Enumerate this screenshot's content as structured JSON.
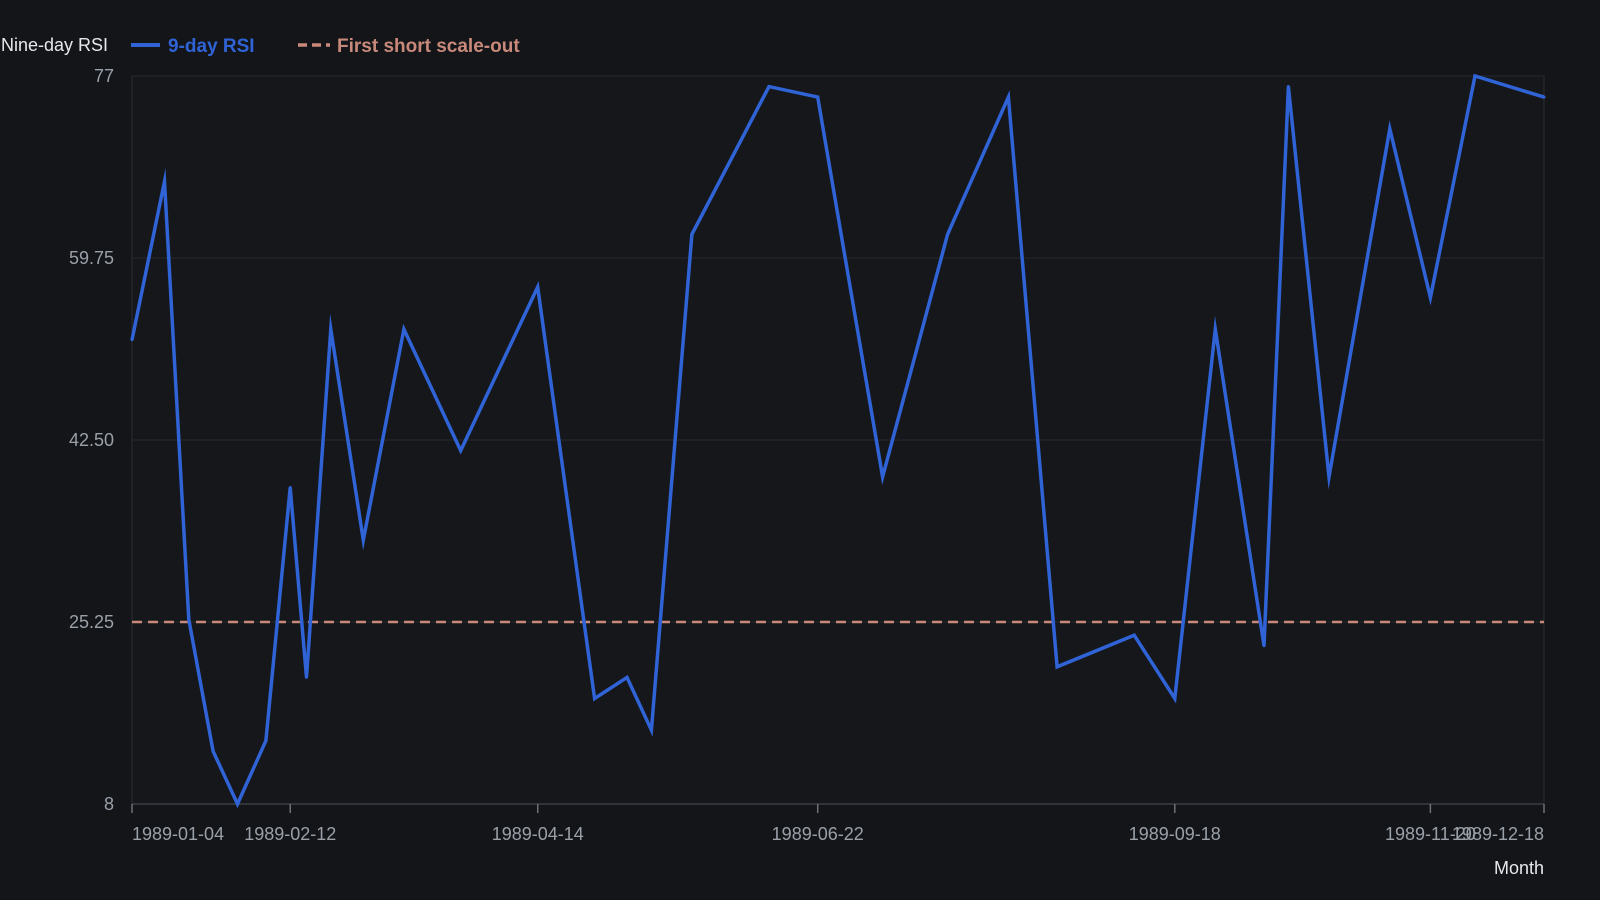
{
  "chart_data": {
    "type": "line",
    "ylabel": "Nine-day RSI",
    "xlabel": "Month",
    "ylim": [
      8,
      77
    ],
    "y_ticks": [
      "77",
      "59.75",
      "42.50",
      "25.25",
      "8"
    ],
    "y_tick_values": [
      77,
      59.75,
      42.5,
      25.25,
      8
    ],
    "x_ticks": [
      "1989-01-04",
      "1989-02-12",
      "1989-04-14",
      "1989-06-22",
      "1989-09-18",
      "1989-11-20",
      "1989-12-18"
    ],
    "xlim": [
      "1989-01-04",
      "1989-12-18"
    ],
    "grid": true,
    "legend_position": "top-left",
    "series": [
      {
        "name": "9-day RSI",
        "color": "#2f63d6",
        "points": [
          [
            "1989-01-04",
            52
          ],
          [
            "1989-01-12",
            67
          ],
          [
            "1989-01-18",
            25.5
          ],
          [
            "1989-01-24",
            13
          ],
          [
            "1989-01-30",
            8
          ],
          [
            "1989-02-06",
            14
          ],
          [
            "1989-02-12",
            38
          ],
          [
            "1989-02-16",
            20
          ],
          [
            "1989-02-22",
            53
          ],
          [
            "1989-03-02",
            33
          ],
          [
            "1989-03-12",
            53
          ],
          [
            "1989-03-26",
            41.5
          ],
          [
            "1989-04-14",
            57
          ],
          [
            "1989-04-28",
            18
          ],
          [
            "1989-05-06",
            20
          ],
          [
            "1989-05-12",
            15
          ],
          [
            "1989-05-22",
            62
          ],
          [
            "1989-06-10",
            76
          ],
          [
            "1989-06-22",
            75
          ],
          [
            "1989-07-08",
            39
          ],
          [
            "1989-07-24",
            62
          ],
          [
            "1989-08-08",
            75
          ],
          [
            "1989-08-20",
            21
          ],
          [
            "1989-09-08",
            24
          ],
          [
            "1989-09-18",
            18
          ],
          [
            "1989-09-28",
            53
          ],
          [
            "1989-10-10",
            23
          ],
          [
            "1989-10-16",
            76
          ],
          [
            "1989-10-26",
            39
          ],
          [
            "1989-11-10",
            72
          ],
          [
            "1989-11-20",
            56
          ],
          [
            "1989-12-01",
            77
          ],
          [
            "1989-12-18",
            75
          ]
        ]
      },
      {
        "name": "First short scale-out",
        "color": "#c9897a",
        "style": "dashed",
        "value": 25.25
      }
    ]
  }
}
